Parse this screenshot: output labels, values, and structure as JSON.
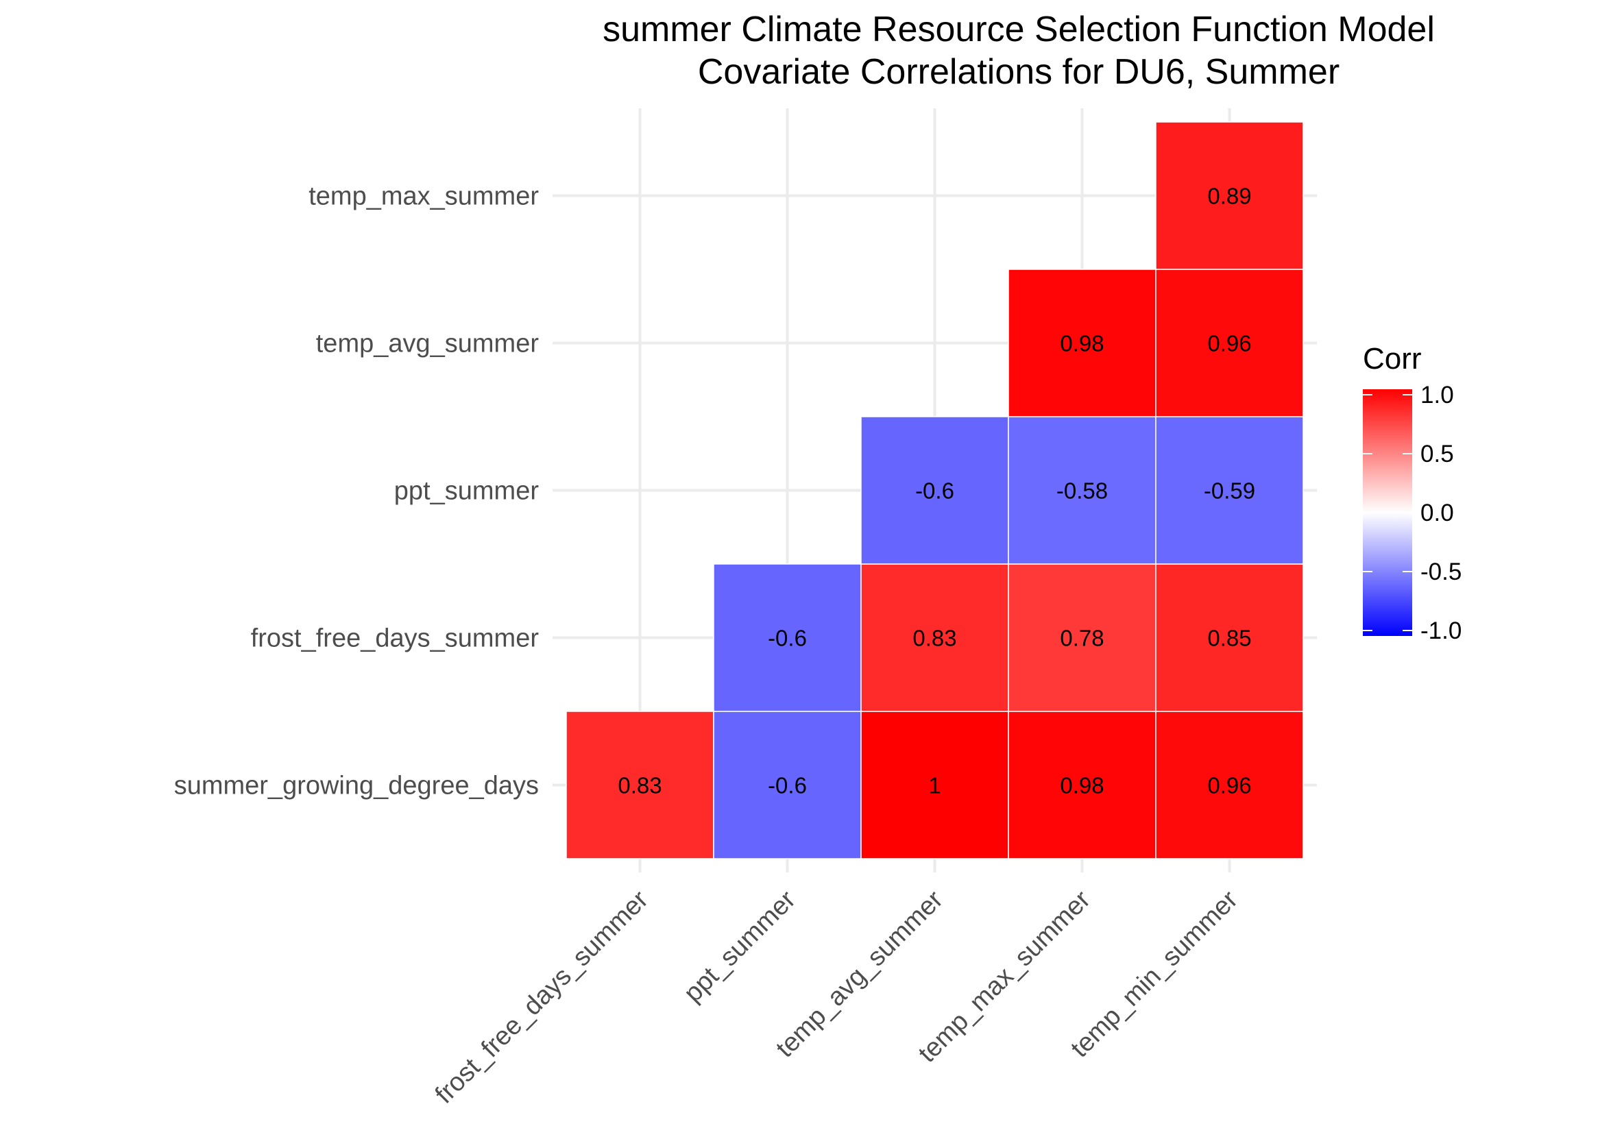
{
  "chart_data": {
    "type": "heatmap",
    "title": "summer Climate Resource Selection Function Model",
    "subtitle": "Covariate Correlations for DU6, Summer",
    "xlabel": "",
    "ylabel": "",
    "x_categories": [
      "frost_free_days_summer",
      "ppt_summer",
      "temp_avg_summer",
      "temp_max_summer",
      "temp_min_summer"
    ],
    "y_categories": [
      "summer_growing_degree_days",
      "frost_free_days_summer",
      "ppt_summer",
      "temp_avg_summer",
      "temp_max_summer"
    ],
    "cells": [
      {
        "x": "frost_free_days_summer",
        "y": "summer_growing_degree_days",
        "value": 0.83,
        "label": "0.83"
      },
      {
        "x": "ppt_summer",
        "y": "summer_growing_degree_days",
        "value": -0.6,
        "label": "-0.6"
      },
      {
        "x": "temp_avg_summer",
        "y": "summer_growing_degree_days",
        "value": 1,
        "label": "1"
      },
      {
        "x": "temp_max_summer",
        "y": "summer_growing_degree_days",
        "value": 0.98,
        "label": "0.98"
      },
      {
        "x": "temp_min_summer",
        "y": "summer_growing_degree_days",
        "value": 0.96,
        "label": "0.96"
      },
      {
        "x": "ppt_summer",
        "y": "frost_free_days_summer",
        "value": -0.6,
        "label": "-0.6"
      },
      {
        "x": "temp_avg_summer",
        "y": "frost_free_days_summer",
        "value": 0.83,
        "label": "0.83"
      },
      {
        "x": "temp_max_summer",
        "y": "frost_free_days_summer",
        "value": 0.78,
        "label": "0.78"
      },
      {
        "x": "temp_min_summer",
        "y": "frost_free_days_summer",
        "value": 0.85,
        "label": "0.85"
      },
      {
        "x": "temp_avg_summer",
        "y": "ppt_summer",
        "value": -0.6,
        "label": "-0.6"
      },
      {
        "x": "temp_max_summer",
        "y": "ppt_summer",
        "value": -0.58,
        "label": "-0.58"
      },
      {
        "x": "temp_min_summer",
        "y": "ppt_summer",
        "value": -0.59,
        "label": "-0.59"
      },
      {
        "x": "temp_max_summer",
        "y": "temp_avg_summer",
        "value": 0.98,
        "label": "0.98"
      },
      {
        "x": "temp_min_summer",
        "y": "temp_avg_summer",
        "value": 0.96,
        "label": "0.96"
      },
      {
        "x": "temp_min_summer",
        "y": "temp_max_summer",
        "value": 0.89,
        "label": "0.89"
      }
    ],
    "legend": {
      "title": "Corr",
      "position": "right",
      "range": [
        -1,
        1
      ],
      "ticks": [
        {
          "value": 1.0,
          "label": "1.0"
        },
        {
          "value": 0.5,
          "label": "0.5"
        },
        {
          "value": 0.0,
          "label": "0.0"
        },
        {
          "value": -0.5,
          "label": "-0.5"
        },
        {
          "value": -1.0,
          "label": "-1.0"
        }
      ]
    },
    "colors": {
      "low": "#0000ff",
      "mid": "#ffffff",
      "high": "#ff0000"
    },
    "grid": true
  }
}
